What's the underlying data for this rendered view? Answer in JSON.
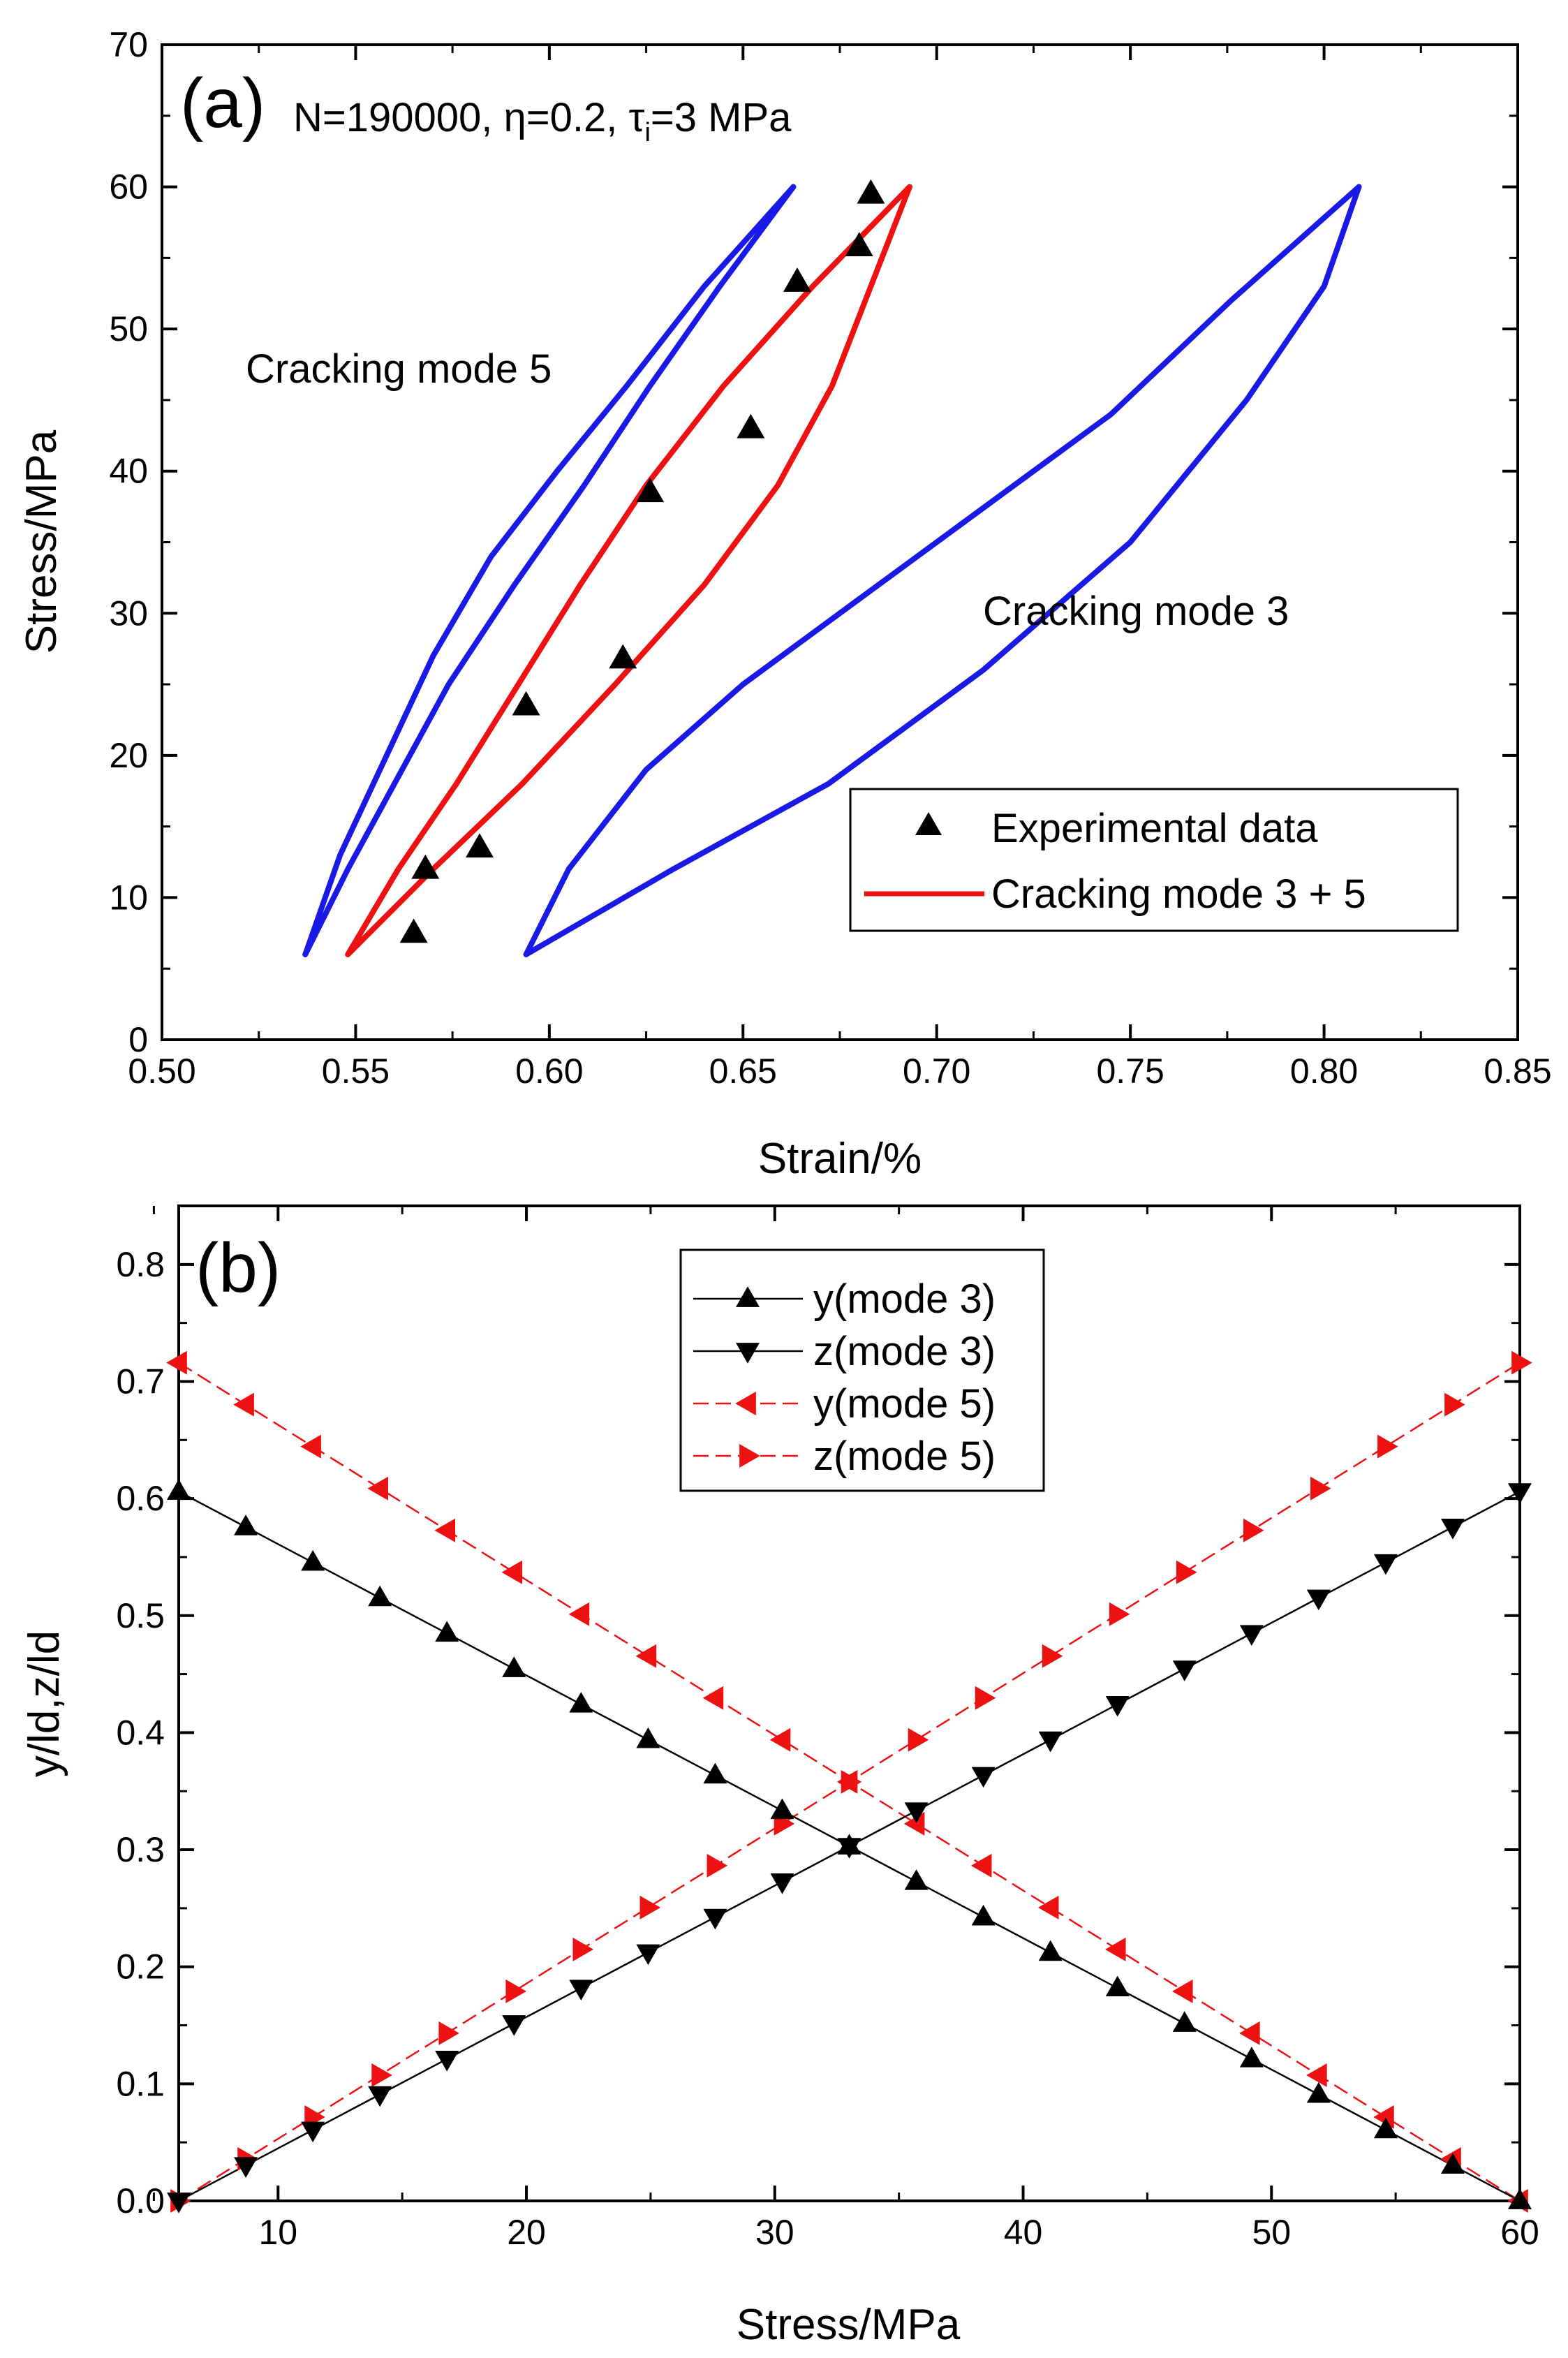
{
  "chart_data": [
    {
      "panel": "(a)",
      "type": "line",
      "title": "",
      "annotation": {
        "prefix": "N=190000, ",
        "eta": "η",
        "eta_value": "=0.2, ",
        "tau": "τ",
        "tau_sub": "i",
        "tau_value": "=3 MPa"
      },
      "xlabel": "Strain/%",
      "ylabel": "Stress/MPa",
      "xlim": [
        0.5,
        0.85
      ],
      "ylim": [
        0,
        70
      ],
      "xticks": [
        0.5,
        0.55,
        0.6,
        0.65,
        0.7,
        0.75,
        0.8,
        0.85
      ],
      "xtick_labels": [
        "0.50",
        "0.55",
        "0.60",
        "0.65",
        "0.70",
        "0.75",
        "0.80",
        "0.85"
      ],
      "yticks": [
        0,
        10,
        20,
        30,
        40,
        50,
        60,
        70
      ],
      "ytick_labels": [
        "0",
        "10",
        "20",
        "30",
        "40",
        "50",
        "60",
        "70"
      ],
      "legend_position": "bottom-right",
      "text_labels": [
        {
          "text": "Cracking mode 5",
          "x": 0.565,
          "y": 47.5
        },
        {
          "text": "Cracking mode 3",
          "x": 0.708,
          "y": 31
        }
      ],
      "series": [
        {
          "name": "Cracking mode 5",
          "kind": "loop",
          "color": "#1a1ae6",
          "in_legend": false,
          "unloading": [
            [
              0.663,
              60
            ],
            [
              0.64,
              53
            ],
            [
              0.62,
              46
            ],
            [
              0.602,
              40
            ],
            [
              0.585,
              34
            ],
            [
              0.57,
              27
            ],
            [
              0.558,
              20
            ],
            [
              0.546,
              13
            ],
            [
              0.537,
              6
            ]
          ],
          "reloading": [
            [
              0.537,
              6
            ],
            [
              0.548,
              12
            ],
            [
              0.56,
              18
            ],
            [
              0.574,
              25
            ],
            [
              0.591,
              32
            ],
            [
              0.609,
              39
            ],
            [
              0.626,
              46
            ],
            [
              0.644,
              53
            ],
            [
              0.663,
              60
            ]
          ]
        },
        {
          "name": "Cracking mode 3",
          "kind": "loop",
          "color": "#1a1ae6",
          "in_legend": false,
          "unloading": [
            [
              0.809,
              60
            ],
            [
              0.776,
              52
            ],
            [
              0.745,
              44
            ],
            [
              0.715,
              38
            ],
            [
              0.68,
              31
            ],
            [
              0.65,
              25
            ],
            [
              0.625,
              19
            ],
            [
              0.605,
              12
            ],
            [
              0.594,
              6
            ]
          ],
          "reloading": [
            [
              0.594,
              6
            ],
            [
              0.632,
              12
            ],
            [
              0.672,
              18
            ],
            [
              0.712,
              26
            ],
            [
              0.75,
              35
            ],
            [
              0.78,
              45
            ],
            [
              0.8,
              53
            ],
            [
              0.809,
              60
            ]
          ]
        },
        {
          "name": "Cracking mode 3 + 5",
          "kind": "loop",
          "color": "#ee1111",
          "in_legend": true,
          "unloading": [
            [
              0.693,
              60
            ],
            [
              0.668,
              53
            ],
            [
              0.645,
              46
            ],
            [
              0.625,
              39
            ],
            [
              0.608,
              32
            ],
            [
              0.592,
              25
            ],
            [
              0.576,
              18
            ],
            [
              0.561,
              12
            ],
            [
              0.548,
              6
            ]
          ],
          "reloading": [
            [
              0.548,
              6
            ],
            [
              0.57,
              12
            ],
            [
              0.593,
              18
            ],
            [
              0.617,
              25
            ],
            [
              0.64,
              32
            ],
            [
              0.659,
              39
            ],
            [
              0.673,
              46
            ],
            [
              0.683,
              53
            ],
            [
              0.693,
              60
            ]
          ]
        },
        {
          "name": "Experimental data",
          "kind": "scatter",
          "marker": "triangle-up",
          "color": "#000000",
          "in_legend": true,
          "points": [
            [
              0.565,
              7.5
            ],
            [
              0.568,
              12
            ],
            [
              0.582,
              13.5
            ],
            [
              0.594,
              23.5
            ],
            [
              0.619,
              26.8
            ],
            [
              0.626,
              38.5
            ],
            [
              0.652,
              43
            ],
            [
              0.664,
              53.3
            ],
            [
              0.68,
              55.8
            ],
            [
              0.683,
              59.5
            ]
          ]
        }
      ]
    },
    {
      "panel": "(b)",
      "type": "line",
      "title": "",
      "xlabel": "Stress/MPa",
      "ylabel": "y/ld,z/ld",
      "xlim": [
        6,
        60
      ],
      "ylim": [
        0,
        0.85
      ],
      "xticks": [
        10,
        20,
        30,
        40,
        50,
        60
      ],
      "xtick_labels": [
        "10",
        "20",
        "30",
        "40",
        "50",
        "60"
      ],
      "yticks": [
        0.0,
        0.1,
        0.2,
        0.3,
        0.4,
        0.5,
        0.6,
        0.7,
        0.8
      ],
      "ytick_labels": [
        "0.0",
        "0.1",
        "0.2",
        "0.3",
        "0.4",
        "0.5",
        "0.6",
        "0.7",
        "0.8"
      ],
      "legend_position": "top-center",
      "x": [
        6.0,
        8.7,
        11.4,
        14.1,
        16.8,
        19.5,
        22.2,
        24.9,
        27.6,
        30.3,
        33.0,
        35.7,
        38.4,
        41.1,
        43.8,
        46.5,
        49.2,
        51.9,
        54.6,
        57.3,
        60.0
      ],
      "series": [
        {
          "name": "y(mode 3)",
          "marker": "triangle-up",
          "color": "#000000",
          "dash": "solid",
          "values": [
            0.606,
            0.5757,
            0.5454,
            0.5151,
            0.4848,
            0.4545,
            0.4242,
            0.3939,
            0.3636,
            0.3333,
            0.303,
            0.2727,
            0.2424,
            0.2121,
            0.1818,
            0.1515,
            0.1212,
            0.0909,
            0.0606,
            0.0303,
            0.0
          ]
        },
        {
          "name": "z(mode 3)",
          "marker": "triangle-down",
          "color": "#000000",
          "dash": "solid",
          "values": [
            0.0,
            0.0303,
            0.0606,
            0.0909,
            0.1212,
            0.1515,
            0.1818,
            0.2121,
            0.2424,
            0.2727,
            0.303,
            0.3333,
            0.3636,
            0.3939,
            0.4242,
            0.4545,
            0.4848,
            0.5151,
            0.5454,
            0.5757,
            0.606
          ]
        },
        {
          "name": "y(mode 5)",
          "marker": "triangle-left",
          "color": "#ee1111",
          "dash": "dashed",
          "values": [
            0.716,
            0.6802,
            0.6444,
            0.6086,
            0.5728,
            0.537,
            0.5012,
            0.4654,
            0.4296,
            0.3938,
            0.358,
            0.3222,
            0.2864,
            0.2506,
            0.2148,
            0.179,
            0.1432,
            0.1074,
            0.0716,
            0.0358,
            0.0
          ]
        },
        {
          "name": "z(mode 5)",
          "marker": "triangle-right",
          "color": "#ee1111",
          "dash": "dashed",
          "values": [
            0.0,
            0.0358,
            0.0716,
            0.1074,
            0.1432,
            0.179,
            0.2148,
            0.2506,
            0.2864,
            0.3222,
            0.358,
            0.3938,
            0.4296,
            0.4654,
            0.5012,
            0.537,
            0.5728,
            0.6086,
            0.6444,
            0.6802,
            0.716
          ]
        }
      ]
    }
  ]
}
